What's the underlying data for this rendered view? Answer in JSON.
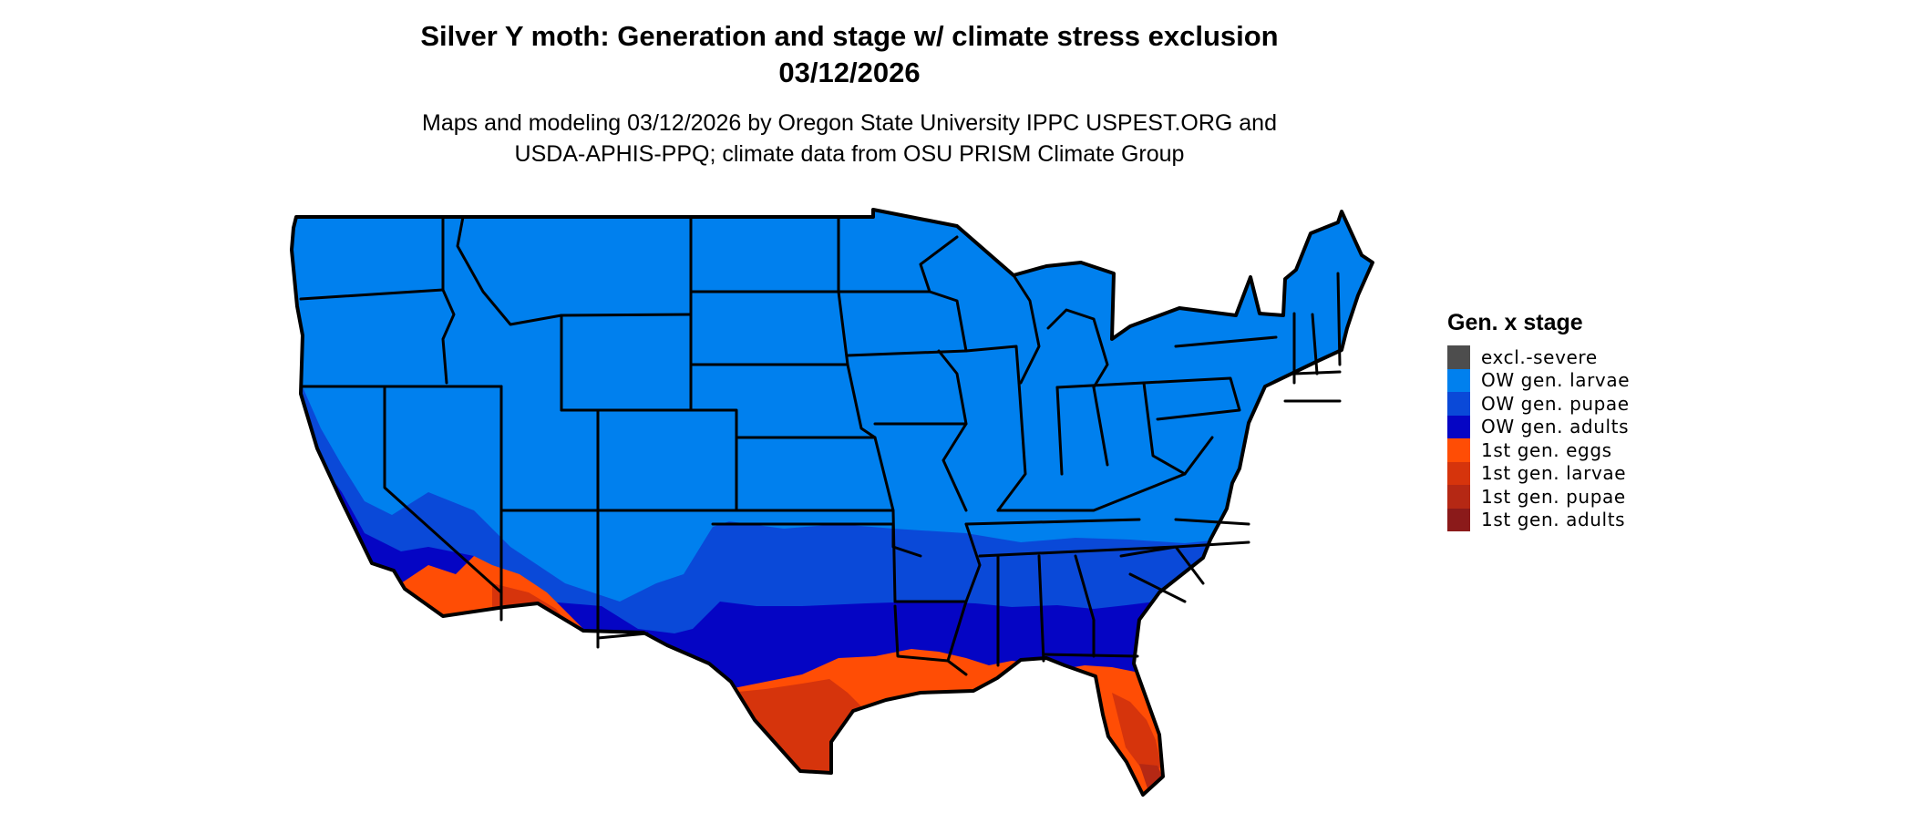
{
  "title_line1": "Silver Y moth: Generation and stage w/ climate stress exclusion",
  "title_line2": "03/12/2026",
  "subtitle_line1": "Maps and modeling 03/12/2026 by Oregon State University IPPC USPEST.ORG and",
  "subtitle_line2": "USDA-APHIS-PPQ; climate data from OSU PRISM Climate Group",
  "legend": {
    "title": "Gen. x stage",
    "items": [
      {
        "label": "excl.-severe",
        "color": "#4d4d4d"
      },
      {
        "label": "OW gen. larvae",
        "color": "#0080ee"
      },
      {
        "label": "OW gen. pupae",
        "color": "#0a49d8"
      },
      {
        "label": "OW gen. adults",
        "color": "#0505c4"
      },
      {
        "label": "1st gen. eggs",
        "color": "#ff4d05"
      },
      {
        "label": "1st gen. larvae",
        "color": "#d6340c"
      },
      {
        "label": "1st gen. pupae",
        "color": "#b52814"
      },
      {
        "label": "1st gen. adults",
        "color": "#8b1a1a"
      }
    ]
  },
  "map_colors": {
    "ow_larvae": "#0080ee",
    "ow_pupae": "#0a49d8",
    "ow_adults": "#0505c4",
    "gen1_eggs": "#ff4d05",
    "gen1_larvae": "#d6340c",
    "gen1_pupae": "#b52814",
    "gen1_adults": "#8b1a1a",
    "boundary": "#000000"
  }
}
